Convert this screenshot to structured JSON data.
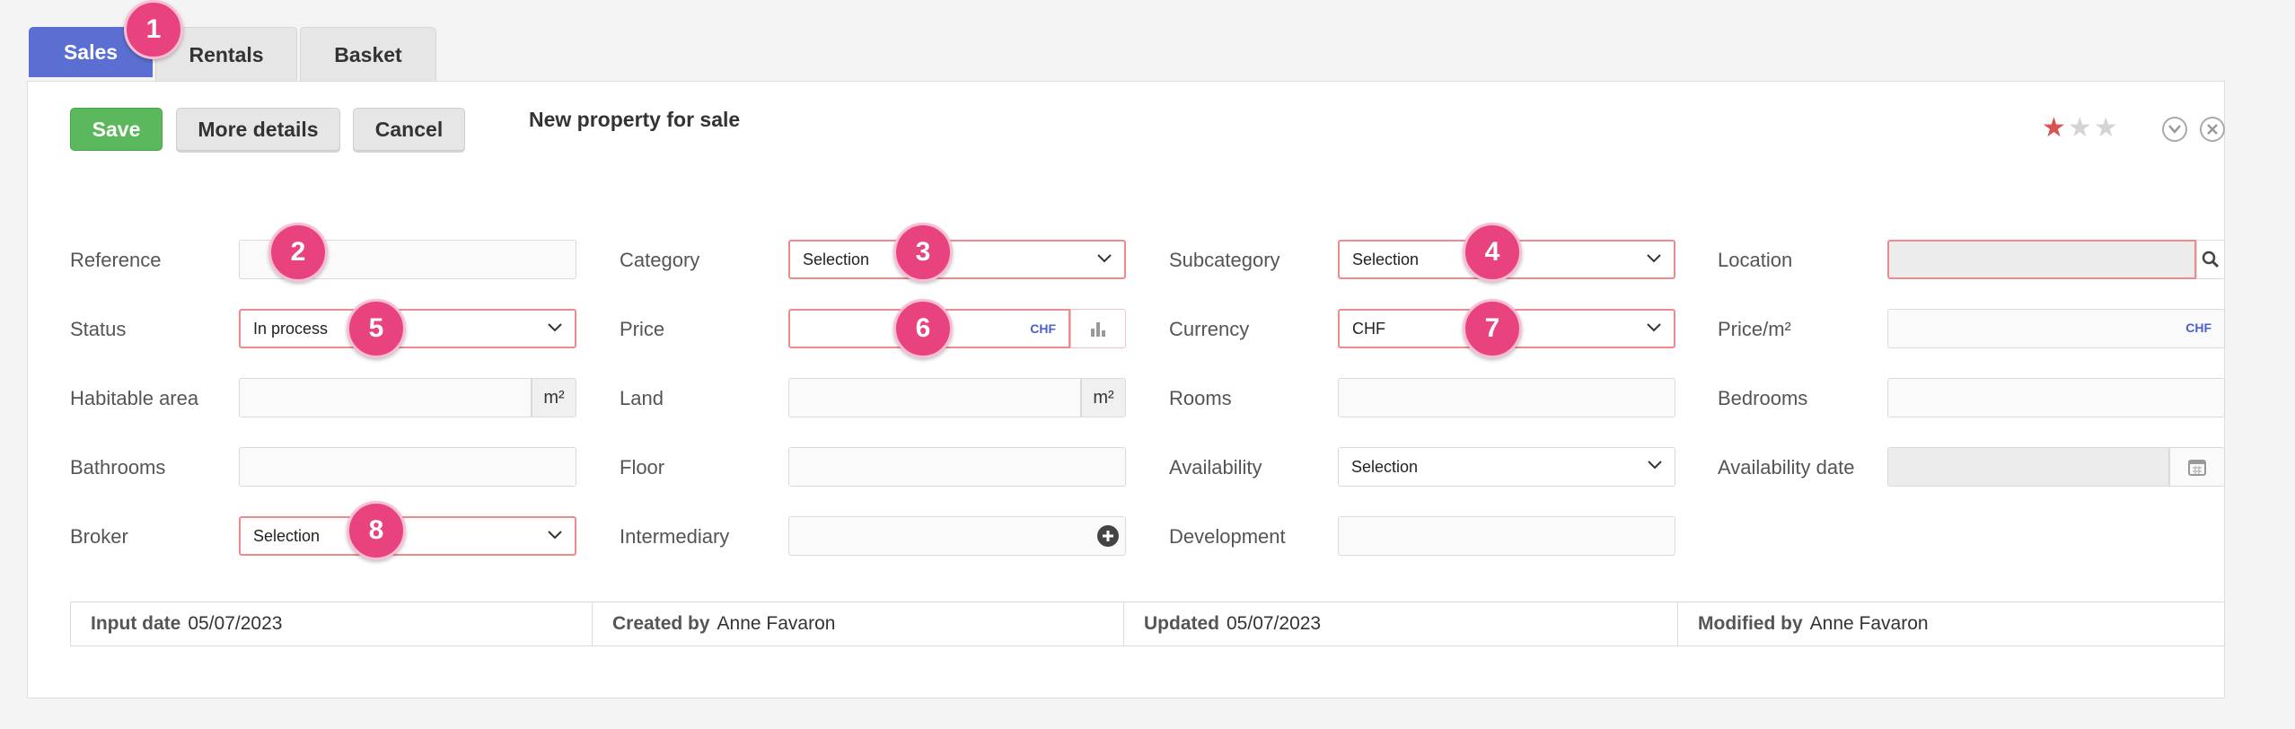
{
  "tabs": [
    "Sales",
    "Rentals",
    "Basket"
  ],
  "toolbar": {
    "save": "Save",
    "more_details": "More details",
    "cancel": "Cancel",
    "form_title": "New property for sale",
    "rating": 1,
    "rating_max": 3
  },
  "fields": {
    "reference": {
      "label": "Reference",
      "value": ""
    },
    "category": {
      "label": "Category",
      "value": "Selection"
    },
    "subcategory": {
      "label": "Subcategory",
      "value": "Selection"
    },
    "location": {
      "label": "Location",
      "value": ""
    },
    "status": {
      "label": "Status",
      "value": "In process"
    },
    "price": {
      "label": "Price",
      "value": "",
      "unit": "CHF"
    },
    "currency": {
      "label": "Currency",
      "value": "CHF"
    },
    "price_m2": {
      "label": "Price/m²",
      "value": "",
      "unit": "CHF"
    },
    "habitable_area": {
      "label": "Habitable area",
      "value": "",
      "unit": "m²"
    },
    "land": {
      "label": "Land",
      "value": "",
      "unit": "m²"
    },
    "rooms": {
      "label": "Rooms",
      "value": ""
    },
    "bedrooms": {
      "label": "Bedrooms",
      "value": ""
    },
    "bathrooms": {
      "label": "Bathrooms",
      "value": ""
    },
    "floor": {
      "label": "Floor",
      "value": ""
    },
    "availability": {
      "label": "Availability",
      "value": "Selection"
    },
    "availability_date": {
      "label": "Availability date",
      "value": ""
    },
    "broker": {
      "label": "Broker",
      "value": "Selection"
    },
    "intermediary": {
      "label": "Intermediary",
      "value": ""
    },
    "development": {
      "label": "Development",
      "value": ""
    }
  },
  "footer": {
    "input_date_label": "Input date",
    "input_date": "05/07/2023",
    "created_by_label": "Created by",
    "created_by": "Anne Favaron",
    "updated_label": "Updated",
    "updated": "05/07/2023",
    "modified_by_label": "Modified by",
    "modified_by": "Anne Favaron"
  },
  "markers": [
    "1",
    "2",
    "3",
    "4",
    "5",
    "6",
    "7",
    "8"
  ],
  "colors": {
    "tab_active": "#5a6fd1",
    "save": "#5cb85c",
    "marker": "#e8437e",
    "highlight_border": "#f08a8f",
    "star_on": "#d9534f"
  }
}
